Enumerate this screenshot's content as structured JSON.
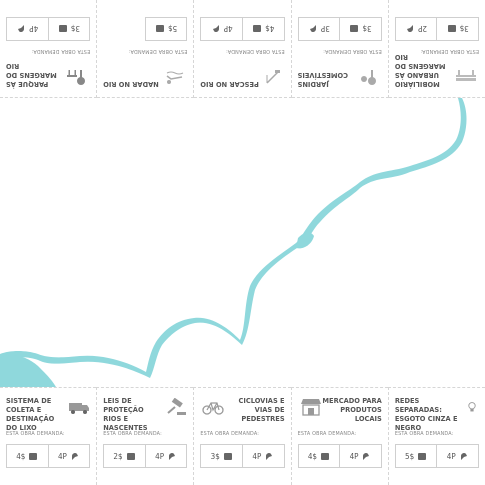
{
  "demand_label": "ESTA OBRA DEMANDA:",
  "top_cards": [
    {
      "title": "PARQUE ÀS MARGENS DO RIO",
      "money": "3$",
      "people": "4P",
      "icon": "park-icon"
    },
    {
      "title": "NADAR NO RIO",
      "money": "5$",
      "people": "",
      "icon": "swimmer-icon"
    },
    {
      "title": "PESCAR NO RIO",
      "money": "4$",
      "people": "4P",
      "icon": "fishing-icon"
    },
    {
      "title": "JARDINS COMESTÍVEIS",
      "money": "3$",
      "people": "3P",
      "icon": "garden-icon"
    },
    {
      "title": "MOBILIÁRIO URBANO ÀS MARGENS DO RIO",
      "money": "3$",
      "people": "2P",
      "icon": "bench-icon"
    }
  ],
  "bottom_cards": [
    {
      "title": "SISTEMA DE COLETA E DESTINAÇÃO DO LIXO",
      "money": "4$",
      "people": "4P",
      "icon": "truck-icon"
    },
    {
      "title": "LEIS DE PROTEÇÃO RIOS E NASCENTES",
      "money": "2$",
      "people": "4P",
      "icon": "gavel-icon"
    },
    {
      "title": "CICLOVIAS E VIAS DE PEDESTRES",
      "money": "3$",
      "people": "4P",
      "icon": "bicycle-icon"
    },
    {
      "title": "MERCADO PARA PRODUTOS LOCAIS",
      "money": "4$",
      "people": "4P",
      "icon": "market-icon"
    },
    {
      "title": "REDES SEPARADAS: ESGOTO CINZA E NEGRO",
      "money": "5$",
      "people": "4P",
      "icon": "lightbulb-icon"
    }
  ],
  "colors": {
    "river": "#8fd8dc",
    "text": "#555555",
    "border": "#cfcfcf"
  }
}
